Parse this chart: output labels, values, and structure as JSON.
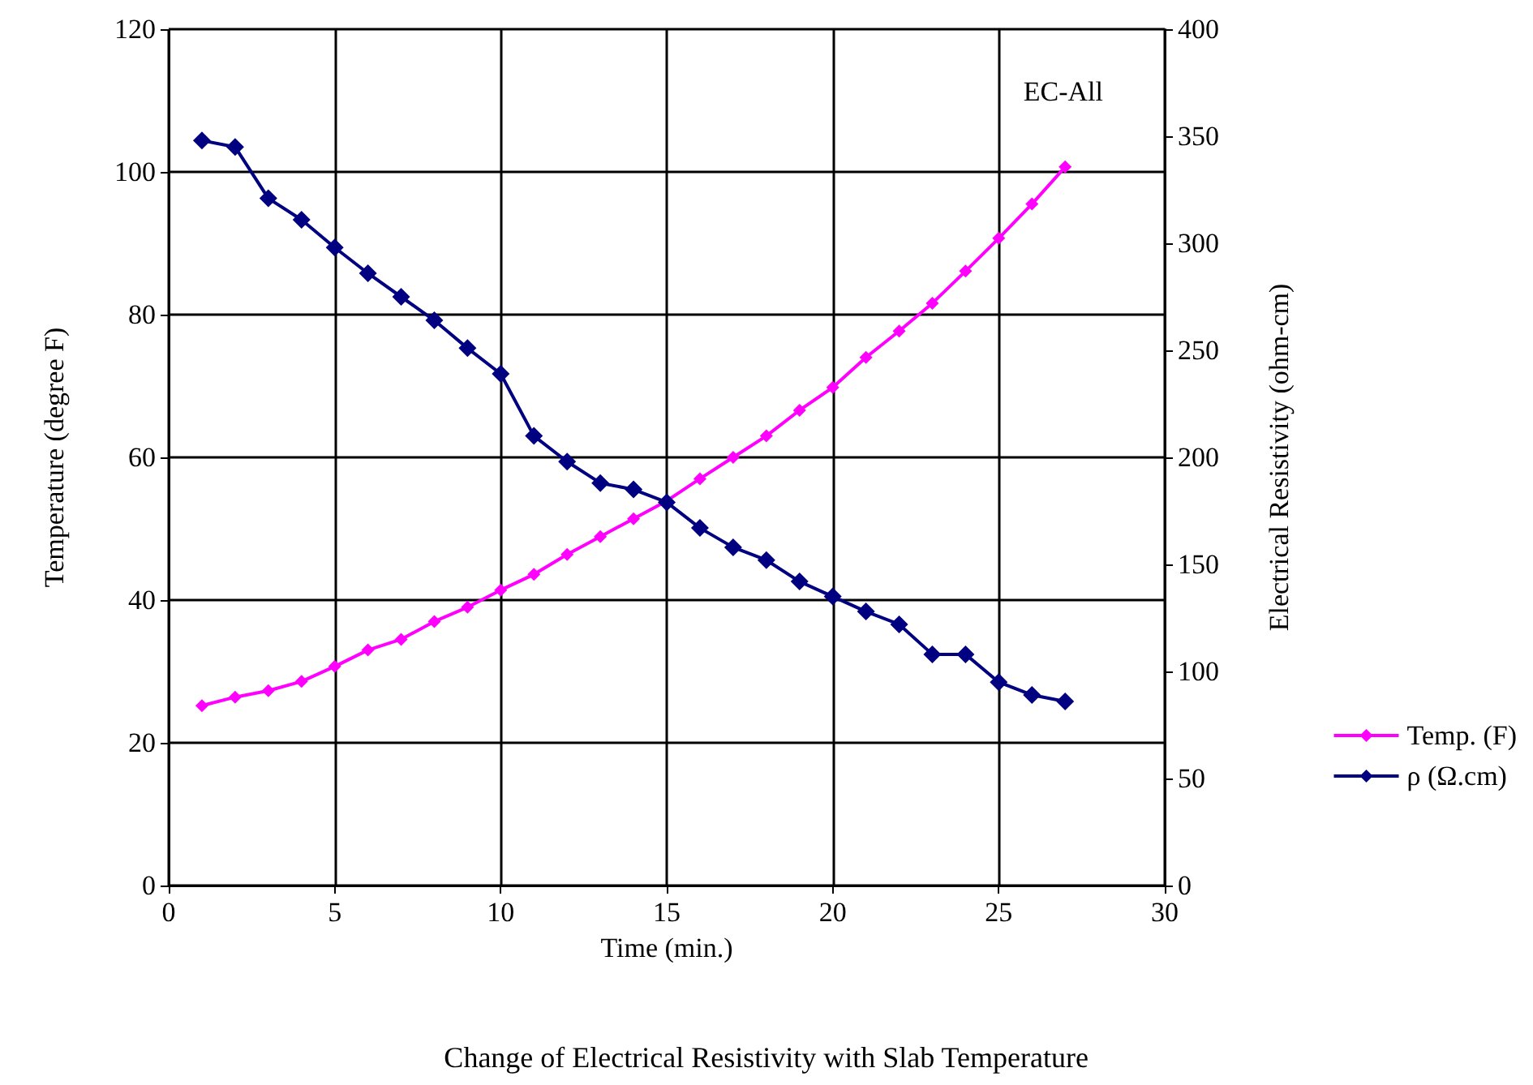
{
  "chart_data": {
    "type": "line",
    "title": "Change of Electrical Resistivity with Slab Temperature",
    "xlabel": "Time (min.)",
    "ylabel": "Temperature (degree F)",
    "y2label": "Electrical Resistivity (ohm-cm)",
    "annotations": [
      "EC-All"
    ],
    "x": [
      1,
      2,
      3,
      4,
      5,
      6,
      7,
      8,
      9,
      10,
      11,
      12,
      13,
      14,
      15,
      16,
      17,
      18,
      19,
      20,
      21,
      22,
      23,
      24,
      25,
      26,
      27
    ],
    "series": [
      {
        "name": "Temp. (F)",
        "color": "#ff00ff",
        "values": [
          25.2,
          26.4,
          27.3,
          28.6,
          30.7,
          33,
          34.5,
          37,
          39,
          41.4,
          43.6,
          46.4,
          48.9,
          51.4,
          53.9,
          57,
          60,
          63,
          66.6,
          69.8,
          74,
          77.7,
          81.6,
          86.1,
          90.7,
          95.5,
          100.7
        ]
      },
      {
        "name": "ρ (Ω.cm)",
        "color": "#000080",
        "axis": "y2",
        "values": [
          348,
          345,
          321,
          311,
          298,
          286,
          275,
          264,
          251,
          239,
          210,
          198,
          188,
          185,
          179,
          167,
          158,
          152,
          142,
          135,
          128,
          122,
          108,
          108,
          95,
          89,
          86
        ]
      }
    ],
    "xlim": [
      0,
      30
    ],
    "xticks": [
      0,
      5,
      10,
      15,
      20,
      25,
      30
    ],
    "ylim": [
      0,
      120
    ],
    "yticks": [
      0,
      20,
      40,
      60,
      80,
      100,
      120
    ],
    "y2lim": [
      0,
      400
    ],
    "y2ticks": [
      0,
      50,
      100,
      150,
      200,
      250,
      300,
      350,
      400
    ],
    "grid": true,
    "legend": "right",
    "marker": "diamond",
    "line_style": "solid"
  }
}
